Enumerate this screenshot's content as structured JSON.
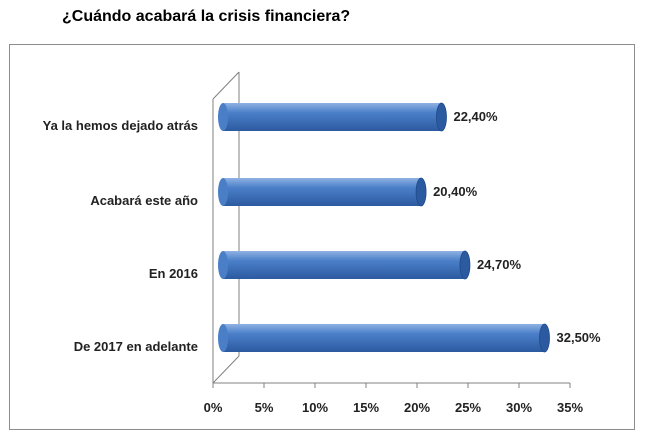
{
  "title": "¿Cuándo acabará la crisis financiera?",
  "colors": {
    "bar": "#4a7fc8",
    "bar_dark": "#2c5aa0",
    "bar_light": "#8fb2e3",
    "axis": "#808080"
  },
  "chart_data": {
    "type": "bar",
    "orientation": "horizontal",
    "style": "3d-cylinder",
    "categories": [
      "Ya la hemos dejado atrás",
      "Acabará este año",
      "En 2016",
      "De 2017 en adelante"
    ],
    "values": [
      22.4,
      20.4,
      24.7,
      32.5
    ],
    "value_labels": [
      "22,40%",
      "20,40%",
      "24,70%",
      "32,50%"
    ],
    "xlim": [
      0,
      35
    ],
    "x_ticks": [
      0,
      5,
      10,
      15,
      20,
      25,
      30,
      35
    ],
    "x_tick_labels": [
      "0%",
      "5%",
      "10%",
      "15%",
      "20%",
      "25%",
      "30%",
      "35%"
    ],
    "grid": false,
    "legend": "none"
  }
}
